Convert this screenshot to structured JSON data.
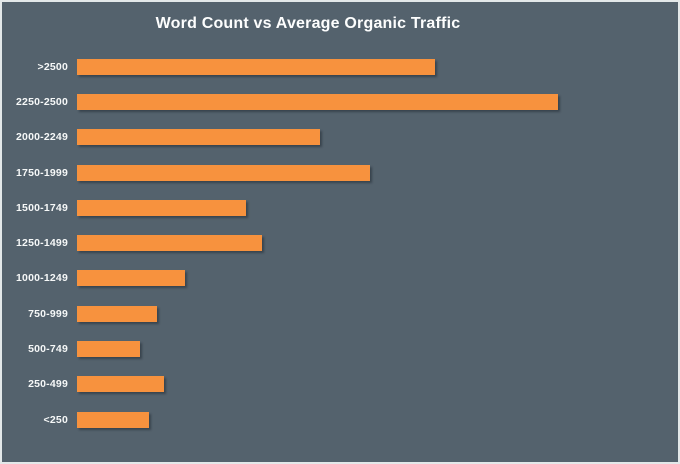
{
  "figure": {
    "background_color": "#54626d",
    "border_color": "#e3e8e9",
    "bar_color": "#f7923e",
    "text_color": "#ffffff"
  },
  "chart_data": {
    "type": "bar",
    "orientation": "horizontal",
    "title": "Word Count vs Average Organic Traffic",
    "xlabel": "",
    "ylabel": "",
    "categories": [
      ">2500",
      "2250-2500",
      "2000-2249",
      "1750-1999",
      "1500-1749",
      "1250-1499",
      "1000-1249",
      "750-999",
      "500-749",
      "250-499",
      "<250"
    ],
    "series": [
      {
        "name": "Average Organic Traffic (relative, % of max bar)",
        "values": [
          74.4,
          100,
          50.5,
          60.9,
          35.1,
          38.5,
          22.5,
          16.6,
          13.1,
          18.1,
          15.0
        ]
      }
    ],
    "value_axis_visible": false,
    "gridlines": false,
    "legend": false,
    "legend_position": "none",
    "xlim": [
      0,
      100
    ]
  }
}
